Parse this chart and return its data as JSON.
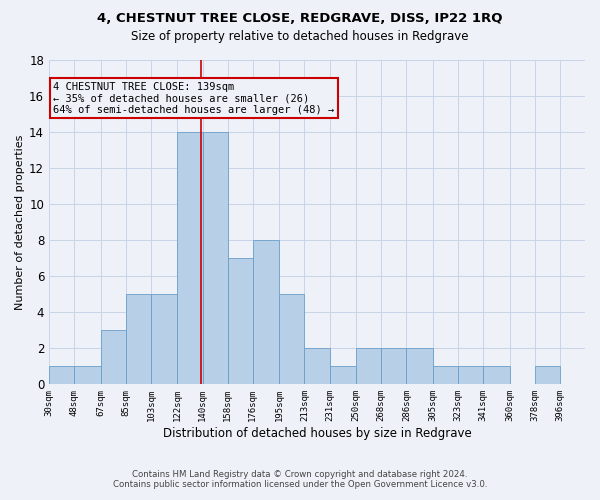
{
  "title": "4, CHESTNUT TREE CLOSE, REDGRAVE, DISS, IP22 1RQ",
  "subtitle": "Size of property relative to detached houses in Redgrave",
  "xlabel": "Distribution of detached houses by size in Redgrave",
  "ylabel": "Number of detached properties",
  "bin_labels": [
    "30sqm",
    "48sqm",
    "67sqm",
    "85sqm",
    "103sqm",
    "122sqm",
    "140sqm",
    "158sqm",
    "176sqm",
    "195sqm",
    "213sqm",
    "231sqm",
    "250sqm",
    "268sqm",
    "286sqm",
    "305sqm",
    "323sqm",
    "341sqm",
    "360sqm",
    "378sqm",
    "396sqm"
  ],
  "bin_edges": [
    30,
    48,
    67,
    85,
    103,
    122,
    140,
    158,
    176,
    195,
    213,
    231,
    250,
    268,
    286,
    305,
    323,
    341,
    360,
    378,
    396
  ],
  "bar_heights": [
    1,
    1,
    3,
    5,
    5,
    14,
    14,
    7,
    8,
    5,
    2,
    1,
    2,
    2,
    2,
    1,
    1,
    1,
    0,
    1,
    0
  ],
  "bar_color": "#b8cfe8",
  "bar_edgecolor": "#6a9ec9",
  "property_value": 139,
  "vline_color": "#cc0000",
  "annotation_text": "4 CHESTNUT TREE CLOSE: 139sqm\n← 35% of detached houses are smaller (26)\n64% of semi-detached houses are larger (48) →",
  "annotation_box_edgecolor": "#cc0000",
  "annotation_fontsize": 7.5,
  "ylim": [
    0,
    18
  ],
  "yticks": [
    0,
    2,
    4,
    6,
    8,
    10,
    12,
    14,
    16,
    18
  ],
  "footer_line1": "Contains HM Land Registry data © Crown copyright and database right 2024.",
  "footer_line2": "Contains public sector information licensed under the Open Government Licence v3.0.",
  "background_color": "#eef2f8",
  "grid_color": "#c8d4e8"
}
